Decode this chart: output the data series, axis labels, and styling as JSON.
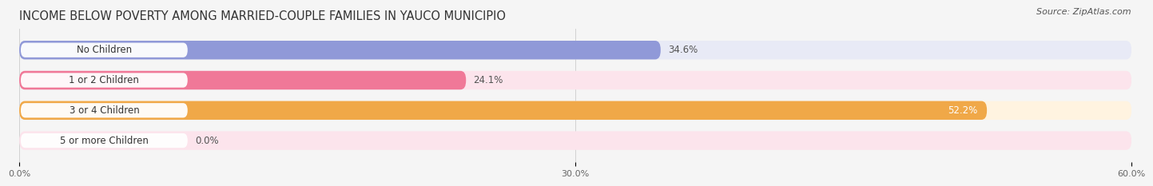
{
  "title": "INCOME BELOW POVERTY AMONG MARRIED-COUPLE FAMILIES IN YAUCO MUNICIPIO",
  "source": "Source: ZipAtlas.com",
  "categories": [
    "No Children",
    "1 or 2 Children",
    "3 or 4 Children",
    "5 or more Children"
  ],
  "values": [
    34.6,
    24.1,
    52.2,
    0.0
  ],
  "bar_colors": [
    "#9099d8",
    "#f07898",
    "#f0a848",
    "#f0a898"
  ],
  "bg_colors": [
    "#e8eaf6",
    "#fce4ec",
    "#fff3e0",
    "#fce4ec"
  ],
  "xlim": [
    0,
    60.0
  ],
  "xticks": [
    0.0,
    30.0,
    60.0
  ],
  "xtick_labels": [
    "0.0%",
    "30.0%",
    "60.0%"
  ],
  "value_labels": [
    "34.6%",
    "24.1%",
    "52.2%",
    "0.0%"
  ],
  "value_inside": [
    false,
    false,
    true,
    false
  ],
  "background_color": "#f5f5f5",
  "title_fontsize": 10.5,
  "label_fontsize": 8.5,
  "value_fontsize": 8.5,
  "source_fontsize": 8
}
